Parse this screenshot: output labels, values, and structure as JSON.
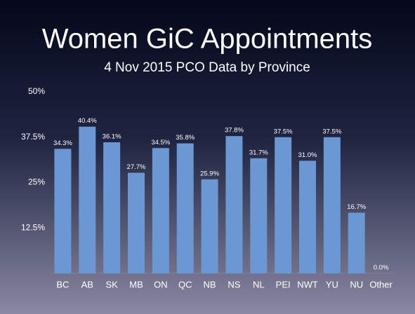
{
  "chart_data": {
    "type": "bar",
    "title": "Women GiC Appointments",
    "subtitle": "4 Nov 2015 PCO Data by Province",
    "categories": [
      "BC",
      "AB",
      "SK",
      "MB",
      "ON",
      "QC",
      "NB",
      "NS",
      "NL",
      "PEI",
      "NWT",
      "YU",
      "NU",
      "Other"
    ],
    "values": [
      34.3,
      40.4,
      36.1,
      27.7,
      34.5,
      35.8,
      25.9,
      37.8,
      31.7,
      37.5,
      31.0,
      37.5,
      16.7,
      0.0
    ],
    "value_labels": [
      "34.3%",
      "40.4%",
      "36.1%",
      "27.7%",
      "34.5%",
      "35.8%",
      "25.9%",
      "37.8%",
      "31.7%",
      "37.5%",
      "31.0%",
      "37.5%",
      "16.7%",
      "0.0%"
    ],
    "color": "#6b97d2",
    "ylim": [
      0,
      50
    ],
    "yticks": [
      {
        "value": 12.5,
        "label": "12.5%"
      },
      {
        "value": 25,
        "label": "25%"
      },
      {
        "value": 37.5,
        "label": "37.5%"
      },
      {
        "value": 50,
        "label": "50%"
      }
    ],
    "grid": false
  }
}
